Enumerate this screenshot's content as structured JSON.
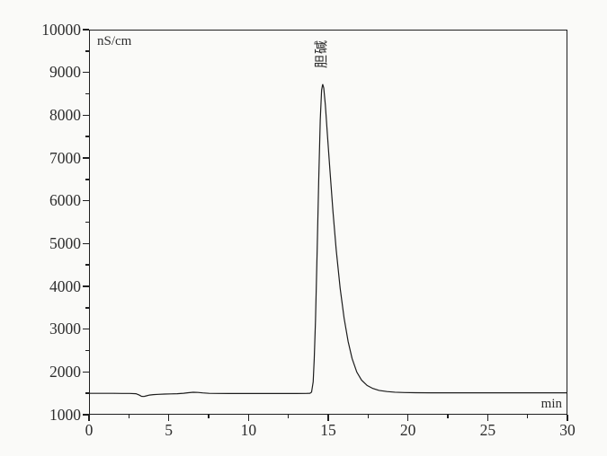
{
  "figure": {
    "background_color": "#fafaf8",
    "axis_color": "#1f1f1f",
    "text_color": "#2e2e2e",
    "y_unit_label": "nS/cm",
    "x_unit_label": "min"
  },
  "chart_data": {
    "type": "line",
    "title": "",
    "xlabel": "min",
    "ylabel": "nS/cm",
    "xlim": [
      0,
      30
    ],
    "ylim": [
      1000,
      10000
    ],
    "grid": false,
    "legend_position": "none",
    "x_major_ticks": [
      0,
      5,
      10,
      15,
      20,
      25,
      30
    ],
    "x_minor_ticks": [
      2.5,
      7.5,
      12.5,
      17.5,
      22.5,
      27.5
    ],
    "y_major_ticks": [
      1000,
      2000,
      3000,
      4000,
      5000,
      6000,
      7000,
      8000,
      9000,
      10000
    ],
    "y_minor_ticks": [
      1500,
      2500,
      3500,
      4500,
      5500,
      6500,
      7500,
      8500,
      9500
    ],
    "line_color": "#1c1c1c",
    "baseline_value": 1480,
    "peak": {
      "label": "胆碱",
      "retention_time_min": 14.6,
      "apex_nS_cm": 8740
    },
    "annotations": [
      {
        "label": "胆碱",
        "x": 14.6,
        "y": 8740,
        "rotation_deg": -90
      }
    ],
    "series": [
      {
        "name": "conductivity-trace",
        "points": [
          [
            0.0,
            1481
          ],
          [
            0.5,
            1481
          ],
          [
            1.0,
            1480
          ],
          [
            1.5,
            1480
          ],
          [
            2.0,
            1479
          ],
          [
            2.5,
            1478
          ],
          [
            2.9,
            1472
          ],
          [
            3.1,
            1440
          ],
          [
            3.25,
            1412
          ],
          [
            3.4,
            1408
          ],
          [
            3.55,
            1422
          ],
          [
            3.75,
            1440
          ],
          [
            4.0,
            1452
          ],
          [
            4.3,
            1458
          ],
          [
            4.7,
            1463
          ],
          [
            5.1,
            1468
          ],
          [
            5.5,
            1472
          ],
          [
            5.9,
            1482
          ],
          [
            6.2,
            1495
          ],
          [
            6.5,
            1505
          ],
          [
            6.8,
            1502
          ],
          [
            7.1,
            1490
          ],
          [
            7.5,
            1481
          ],
          [
            8.0,
            1478
          ],
          [
            9.0,
            1477
          ],
          [
            10.0,
            1477
          ],
          [
            11.0,
            1477
          ],
          [
            12.0,
            1477
          ],
          [
            13.0,
            1477
          ],
          [
            13.6,
            1478
          ],
          [
            13.85,
            1482
          ],
          [
            13.95,
            1510
          ],
          [
            14.05,
            1750
          ],
          [
            14.12,
            2300
          ],
          [
            14.2,
            3200
          ],
          [
            14.3,
            4800
          ],
          [
            14.4,
            6500
          ],
          [
            14.5,
            7900
          ],
          [
            14.58,
            8600
          ],
          [
            14.65,
            8740
          ],
          [
            14.72,
            8650
          ],
          [
            14.82,
            8250
          ],
          [
            14.95,
            7550
          ],
          [
            15.1,
            6750
          ],
          [
            15.3,
            5750
          ],
          [
            15.5,
            4850
          ],
          [
            15.75,
            3950
          ],
          [
            16.0,
            3250
          ],
          [
            16.25,
            2700
          ],
          [
            16.5,
            2300
          ],
          [
            16.8,
            1980
          ],
          [
            17.1,
            1790
          ],
          [
            17.45,
            1665
          ],
          [
            17.8,
            1595
          ],
          [
            18.2,
            1550
          ],
          [
            18.7,
            1522
          ],
          [
            19.2,
            1508
          ],
          [
            19.8,
            1500
          ],
          [
            20.5,
            1496
          ],
          [
            21.5,
            1494
          ],
          [
            23.0,
            1493
          ],
          [
            25.0,
            1493
          ],
          [
            27.0,
            1493
          ],
          [
            29.0,
            1493
          ],
          [
            30.0,
            1493
          ]
        ]
      }
    ]
  }
}
